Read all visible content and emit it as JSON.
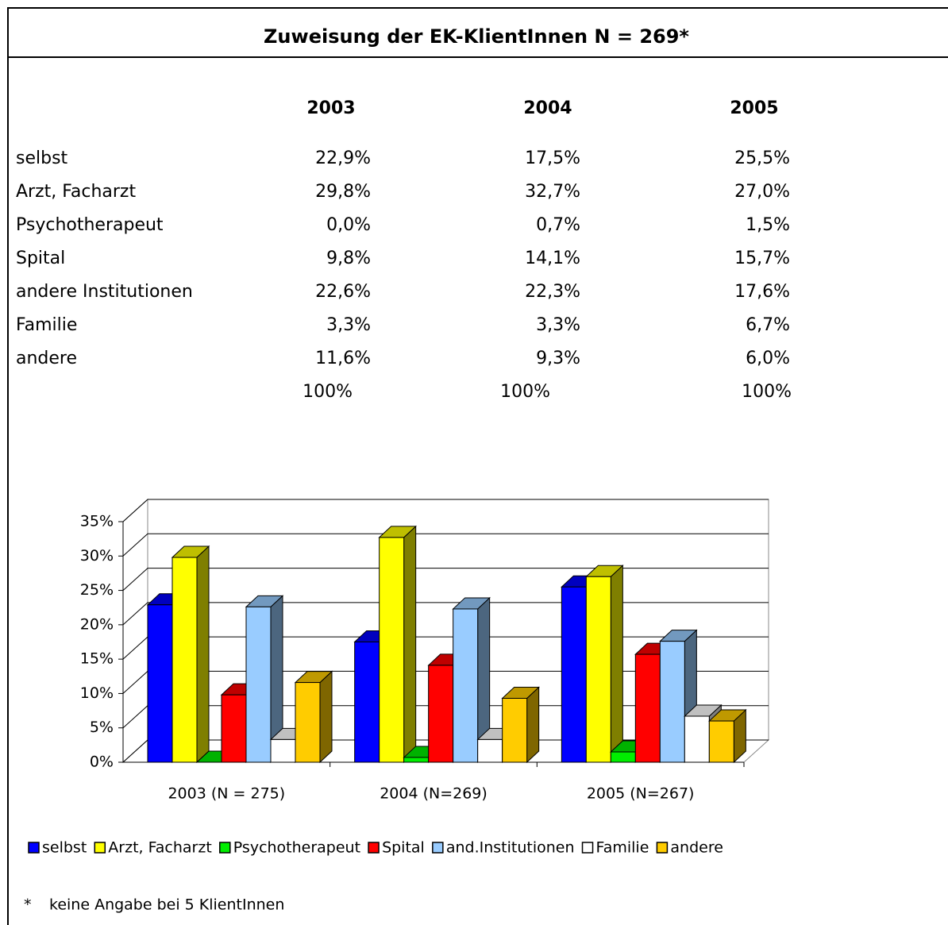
{
  "title": "Zuweisung der EK-KlientInnen  N = 269*",
  "table": {
    "columns": [
      "2003",
      "2004",
      "2005"
    ],
    "rows": [
      {
        "label": "selbst",
        "cells": [
          "22,9%",
          "17,5%",
          "25,5%"
        ]
      },
      {
        "label": "Arzt, Facharzt",
        "cells": [
          "29,8%",
          "32,7%",
          "27,0%"
        ]
      },
      {
        "label": "Psychotherapeut",
        "cells": [
          "0,0%",
          "0,7%",
          "1,5%"
        ]
      },
      {
        "label": "Spital",
        "cells": [
          "9,8%",
          "14,1%",
          "15,7%"
        ]
      },
      {
        "label": "andere Institutionen",
        "cells": [
          "22,6%",
          "22,3%",
          "17,6%"
        ]
      },
      {
        "label": "Familie",
        "cells": [
          "3,3%",
          "3,3%",
          "6,7%"
        ]
      },
      {
        "label": "andere",
        "cells": [
          "11,6%",
          "9,3%",
          "6,0%"
        ]
      }
    ],
    "totals": [
      "100%",
      "100%",
      "100%"
    ]
  },
  "chart_data": {
    "type": "bar3d",
    "categories": [
      "2003 (N = 275)",
      "2004 (N=269)",
      "2005 (N=267)"
    ],
    "series": [
      {
        "name": "selbst",
        "color": "#0000ff",
        "values": [
          22.9,
          17.5,
          25.5
        ]
      },
      {
        "name": "Arzt, Facharzt",
        "color": "#ffff00",
        "values": [
          29.8,
          32.7,
          27.0
        ]
      },
      {
        "name": "Psychotherapeut",
        "color": "#00ee00",
        "values": [
          0.0,
          0.7,
          1.5
        ]
      },
      {
        "name": "Spital",
        "color": "#ff0000",
        "values": [
          9.8,
          14.1,
          15.7
        ]
      },
      {
        "name": "and.Institutionen",
        "color": "#99ccff",
        "values": [
          22.6,
          22.3,
          17.6
        ]
      },
      {
        "name": "Familie",
        "color": "#ffffff",
        "values": [
          3.3,
          3.3,
          6.7
        ]
      },
      {
        "name": "andere",
        "color": "#ffcc00",
        "values": [
          11.6,
          9.3,
          6.0
        ]
      }
    ],
    "ylim": [
      0,
      35
    ],
    "yticks": [
      {
        "value": 0,
        "label": "0%"
      },
      {
        "value": 5,
        "label": "5%"
      },
      {
        "value": 10,
        "label": "10%"
      },
      {
        "value": 15,
        "label": "15%"
      },
      {
        "value": 20,
        "label": "20%"
      },
      {
        "value": 25,
        "label": "25%"
      },
      {
        "value": 30,
        "label": "30%"
      },
      {
        "value": 35,
        "label": "35%"
      }
    ],
    "grid": true,
    "legend": "bottom"
  },
  "footnote": {
    "marker": "*",
    "text": "keine Angabe bei 5 KlientInnen"
  }
}
